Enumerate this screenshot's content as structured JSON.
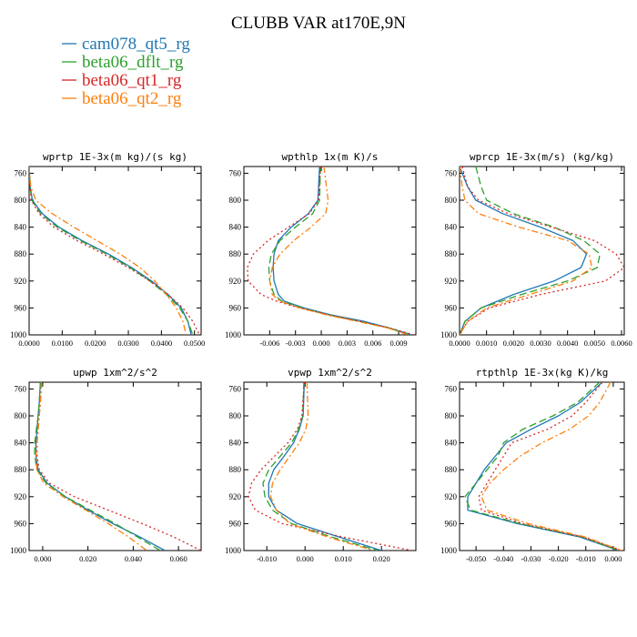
{
  "title": "CLUBB VAR at170E,9N",
  "legend": [
    {
      "name": "cam078_qt5_rg",
      "color": "#1f77b4",
      "dash": "solid"
    },
    {
      "name": "beta06_dflt_rg",
      "color": "#2ca02c",
      "dash": "longdash"
    },
    {
      "name": "beta06_qt1_rg",
      "color": "#d62728",
      "dash": "dot"
    },
    {
      "name": "beta06_qt2_rg",
      "color": "#ff7f0e",
      "dash": "dashdot"
    }
  ],
  "chart_data": [
    {
      "type": "line",
      "title": "wprtp   1E-3x(m kg)/(s kg)",
      "ylim": [
        1000,
        750
      ],
      "yticks": [
        760,
        800,
        840,
        880,
        920,
        960,
        1000
      ],
      "xlim": [
        0.0,
        0.052
      ],
      "xticks": [
        0.0,
        0.01,
        0.02,
        0.03,
        0.04,
        0.05
      ],
      "xticklabels": [
        "0.0000",
        "0.0100",
        "0.0200",
        "0.0300",
        "0.0400",
        "0.0500"
      ],
      "y": [
        750,
        780,
        800,
        820,
        840,
        860,
        880,
        900,
        920,
        940,
        960,
        980,
        1000
      ],
      "series": [
        {
          "values": [
            0.0,
            0.0003,
            0.001,
            0.004,
            0.009,
            0.016,
            0.024,
            0.031,
            0.037,
            0.042,
            0.046,
            0.048,
            0.049
          ]
        },
        {
          "values": [
            0.0,
            0.0003,
            0.0008,
            0.0035,
            0.0085,
            0.0155,
            0.0235,
            0.0305,
            0.0365,
            0.0415,
            0.0455,
            0.048,
            0.0495
          ]
        },
        {
          "values": [
            0.0,
            0.0003,
            0.0007,
            0.003,
            0.0075,
            0.0145,
            0.0225,
            0.03,
            0.0365,
            0.042,
            0.0465,
            0.0495,
            0.0515
          ]
        },
        {
          "values": [
            0.0,
            0.0005,
            0.002,
            0.007,
            0.0135,
            0.0205,
            0.0275,
            0.0335,
            0.038,
            0.0415,
            0.0445,
            0.0465,
            0.0475
          ]
        }
      ]
    },
    {
      "type": "line",
      "title": "wpthlp   1x(m K)/s",
      "ylim": [
        1000,
        750
      ],
      "yticks": [
        760,
        800,
        840,
        880,
        920,
        960,
        1000
      ],
      "xlim": [
        -0.009,
        0.011
      ],
      "xticks": [
        -0.006,
        -0.003,
        0.0,
        0.003,
        0.006,
        0.009
      ],
      "xticklabels": [
        "-0.006",
        "-0.003",
        "0.000",
        "0.003",
        "0.006",
        "0.009"
      ],
      "y": [
        750,
        800,
        820,
        840,
        860,
        880,
        900,
        920,
        940,
        950,
        960,
        970,
        980,
        990,
        1000
      ],
      "series": [
        {
          "values": [
            -0.0002,
            -0.0004,
            -0.0015,
            -0.0035,
            -0.005,
            -0.0055,
            -0.0056,
            -0.0055,
            -0.005,
            -0.0043,
            -0.002,
            0.001,
            0.005,
            0.008,
            0.0105
          ]
        },
        {
          "values": [
            -0.0001,
            -0.0002,
            -0.001,
            -0.003,
            -0.0048,
            -0.0058,
            -0.0061,
            -0.006,
            -0.0055,
            -0.0046,
            -0.0022,
            0.0008,
            0.0045,
            0.008,
            0.0102
          ]
        },
        {
          "values": [
            -0.0001,
            -0.0003,
            -0.0014,
            -0.0038,
            -0.0062,
            -0.0079,
            -0.0086,
            -0.0085,
            -0.007,
            -0.0052,
            -0.0025,
            0.0008,
            0.0045,
            0.008,
            0.0108
          ]
        },
        {
          "values": [
            0.0003,
            0.0008,
            0.0005,
            -0.0012,
            -0.0032,
            -0.0048,
            -0.0057,
            -0.006,
            -0.0057,
            -0.0048,
            -0.0025,
            0.0005,
            0.0042,
            0.0078,
            0.0101
          ]
        }
      ]
    },
    {
      "type": "line",
      "title": "wprcp   1E-3x(m/s) (kg/kg)",
      "ylim": [
        1000,
        750
      ],
      "yticks": [
        760,
        800,
        840,
        880,
        920,
        960,
        1000
      ],
      "xlim": [
        0.0,
        0.0061
      ],
      "xticks": [
        0.0,
        0.001,
        0.002,
        0.003,
        0.004,
        0.005,
        0.006
      ],
      "xticklabels": [
        "0.0000",
        "0.0010",
        "0.0020",
        "0.0030",
        "0.0040",
        "0.0050",
        "0.0060"
      ],
      "y": [
        750,
        780,
        800,
        820,
        840,
        860,
        880,
        900,
        920,
        940,
        960,
        980,
        1000
      ],
      "series": [
        {
          "values": [
            0.0,
            0.0003,
            0.0006,
            0.0016,
            0.003,
            0.0042,
            0.0047,
            0.0045,
            0.0035,
            0.002,
            0.0008,
            0.0002,
            0.0
          ]
        },
        {
          "values": [
            0.0006,
            0.0008,
            0.001,
            0.002,
            0.0035,
            0.0046,
            0.0052,
            0.0051,
            0.004,
            0.0023,
            0.0008,
            0.0002,
            0.0
          ]
        },
        {
          "values": [
            0.0001,
            0.0003,
            0.0007,
            0.0018,
            0.0034,
            0.005,
            0.0058,
            0.0061,
            0.0054,
            0.003,
            0.0011,
            0.0003,
            0.0
          ]
        },
        {
          "values": [
            0.0,
            0.0001,
            0.0002,
            0.0007,
            0.0022,
            0.004,
            0.0048,
            0.0049,
            0.0042,
            0.0026,
            0.001,
            0.0003,
            0.0
          ]
        }
      ]
    },
    {
      "type": "line",
      "title": "upwp   1xm^2/s^2",
      "ylim": [
        1000,
        750
      ],
      "yticks": [
        760,
        800,
        840,
        880,
        920,
        960,
        1000
      ],
      "xlim": [
        -0.006,
        0.07
      ],
      "xticks": [
        0.0,
        0.02,
        0.04,
        0.06
      ],
      "xticklabels": [
        "0.000",
        "0.020",
        "0.040",
        "0.060"
      ],
      "y": [
        750,
        780,
        800,
        820,
        840,
        860,
        880,
        900,
        920,
        940,
        960,
        980,
        1000
      ],
      "series": [
        {
          "values": [
            -0.001,
            -0.0015,
            -0.002,
            -0.0025,
            -0.003,
            -0.003,
            -0.002,
            0.002,
            0.01,
            0.02,
            0.031,
            0.043,
            0.054
          ]
        },
        {
          "values": [
            -0.001,
            -0.0015,
            -0.002,
            -0.0028,
            -0.0035,
            -0.0035,
            -0.0025,
            0.0015,
            0.01,
            0.021,
            0.032,
            0.042,
            0.052
          ]
        },
        {
          "values": [
            -0.0005,
            -0.001,
            -0.0015,
            -0.002,
            -0.0025,
            -0.0025,
            -0.0015,
            0.003,
            0.014,
            0.029,
            0.044,
            0.058,
            0.07
          ]
        },
        {
          "values": [
            -0.0005,
            -0.001,
            -0.0015,
            -0.002,
            -0.0025,
            -0.003,
            -0.0025,
            0.0005,
            0.009,
            0.019,
            0.029,
            0.038,
            0.046
          ]
        }
      ]
    },
    {
      "type": "line",
      "title": "vpwp   1xm^2/s^2",
      "ylim": [
        1000,
        750
      ],
      "yticks": [
        760,
        800,
        840,
        880,
        920,
        960,
        1000
      ],
      "xlim": [
        -0.016,
        0.029
      ],
      "xticks": [
        -0.01,
        0.0,
        0.01,
        0.02
      ],
      "xticklabels": [
        "-0.010",
        "0.000",
        "0.010",
        "0.020"
      ],
      "y": [
        750,
        800,
        820,
        840,
        860,
        880,
        900,
        920,
        940,
        960,
        980,
        1000
      ],
      "series": [
        {
          "values": [
            -0.0002,
            -0.0005,
            -0.0015,
            -0.003,
            -0.0055,
            -0.0082,
            -0.0095,
            -0.0095,
            -0.0075,
            -0.002,
            0.009,
            0.02
          ]
        },
        {
          "values": [
            -0.0003,
            -0.0006,
            -0.0017,
            -0.0035,
            -0.0065,
            -0.0095,
            -0.011,
            -0.0105,
            -0.0085,
            -0.0035,
            0.007,
            0.019
          ]
        },
        {
          "values": [
            -0.0002,
            -0.0008,
            -0.002,
            -0.0045,
            -0.008,
            -0.0115,
            -0.014,
            -0.0148,
            -0.013,
            -0.006,
            0.01,
            0.028
          ]
        },
        {
          "values": [
            0.0005,
            0.0008,
            0.0002,
            -0.0015,
            -0.004,
            -0.0065,
            -0.0085,
            -0.009,
            -0.0075,
            -0.004,
            0.006,
            0.018
          ]
        }
      ]
    },
    {
      "type": "line",
      "title": "rtpthlp   1E-3x(kg K)/kg",
      "ylim": [
        1000,
        750
      ],
      "yticks": [
        760,
        800,
        840,
        880,
        920,
        960,
        1000
      ],
      "xlim": [
        -0.056,
        0.004
      ],
      "xticks": [
        -0.05,
        -0.04,
        -0.03,
        -0.02,
        -0.01,
        0.0
      ],
      "xticklabels": [
        "-0.050",
        "-0.040",
        "-0.030",
        "-0.020",
        "-0.010",
        "0.000"
      ],
      "y": [
        750,
        780,
        800,
        820,
        840,
        860,
        880,
        900,
        920,
        940,
        960,
        980,
        1000
      ],
      "series": [
        {
          "values": [
            -0.004,
            -0.012,
            -0.02,
            -0.03,
            -0.039,
            -0.043,
            -0.047,
            -0.05,
            -0.053,
            -0.053,
            -0.035,
            -0.012,
            0.002
          ]
        },
        {
          "values": [
            -0.005,
            -0.013,
            -0.022,
            -0.033,
            -0.04,
            -0.042,
            -0.046,
            -0.05,
            -0.054,
            -0.052,
            -0.034,
            -0.011,
            0.002
          ]
        },
        {
          "values": [
            -0.004,
            -0.01,
            -0.015,
            -0.024,
            -0.037,
            -0.04,
            -0.043,
            -0.046,
            -0.049,
            -0.048,
            -0.033,
            -0.011,
            0.003
          ]
        },
        {
          "values": [
            -0.001,
            -0.005,
            -0.009,
            -0.016,
            -0.026,
            -0.034,
            -0.04,
            -0.045,
            -0.048,
            -0.046,
            -0.031,
            -0.01,
            0.003
          ]
        }
      ]
    }
  ]
}
